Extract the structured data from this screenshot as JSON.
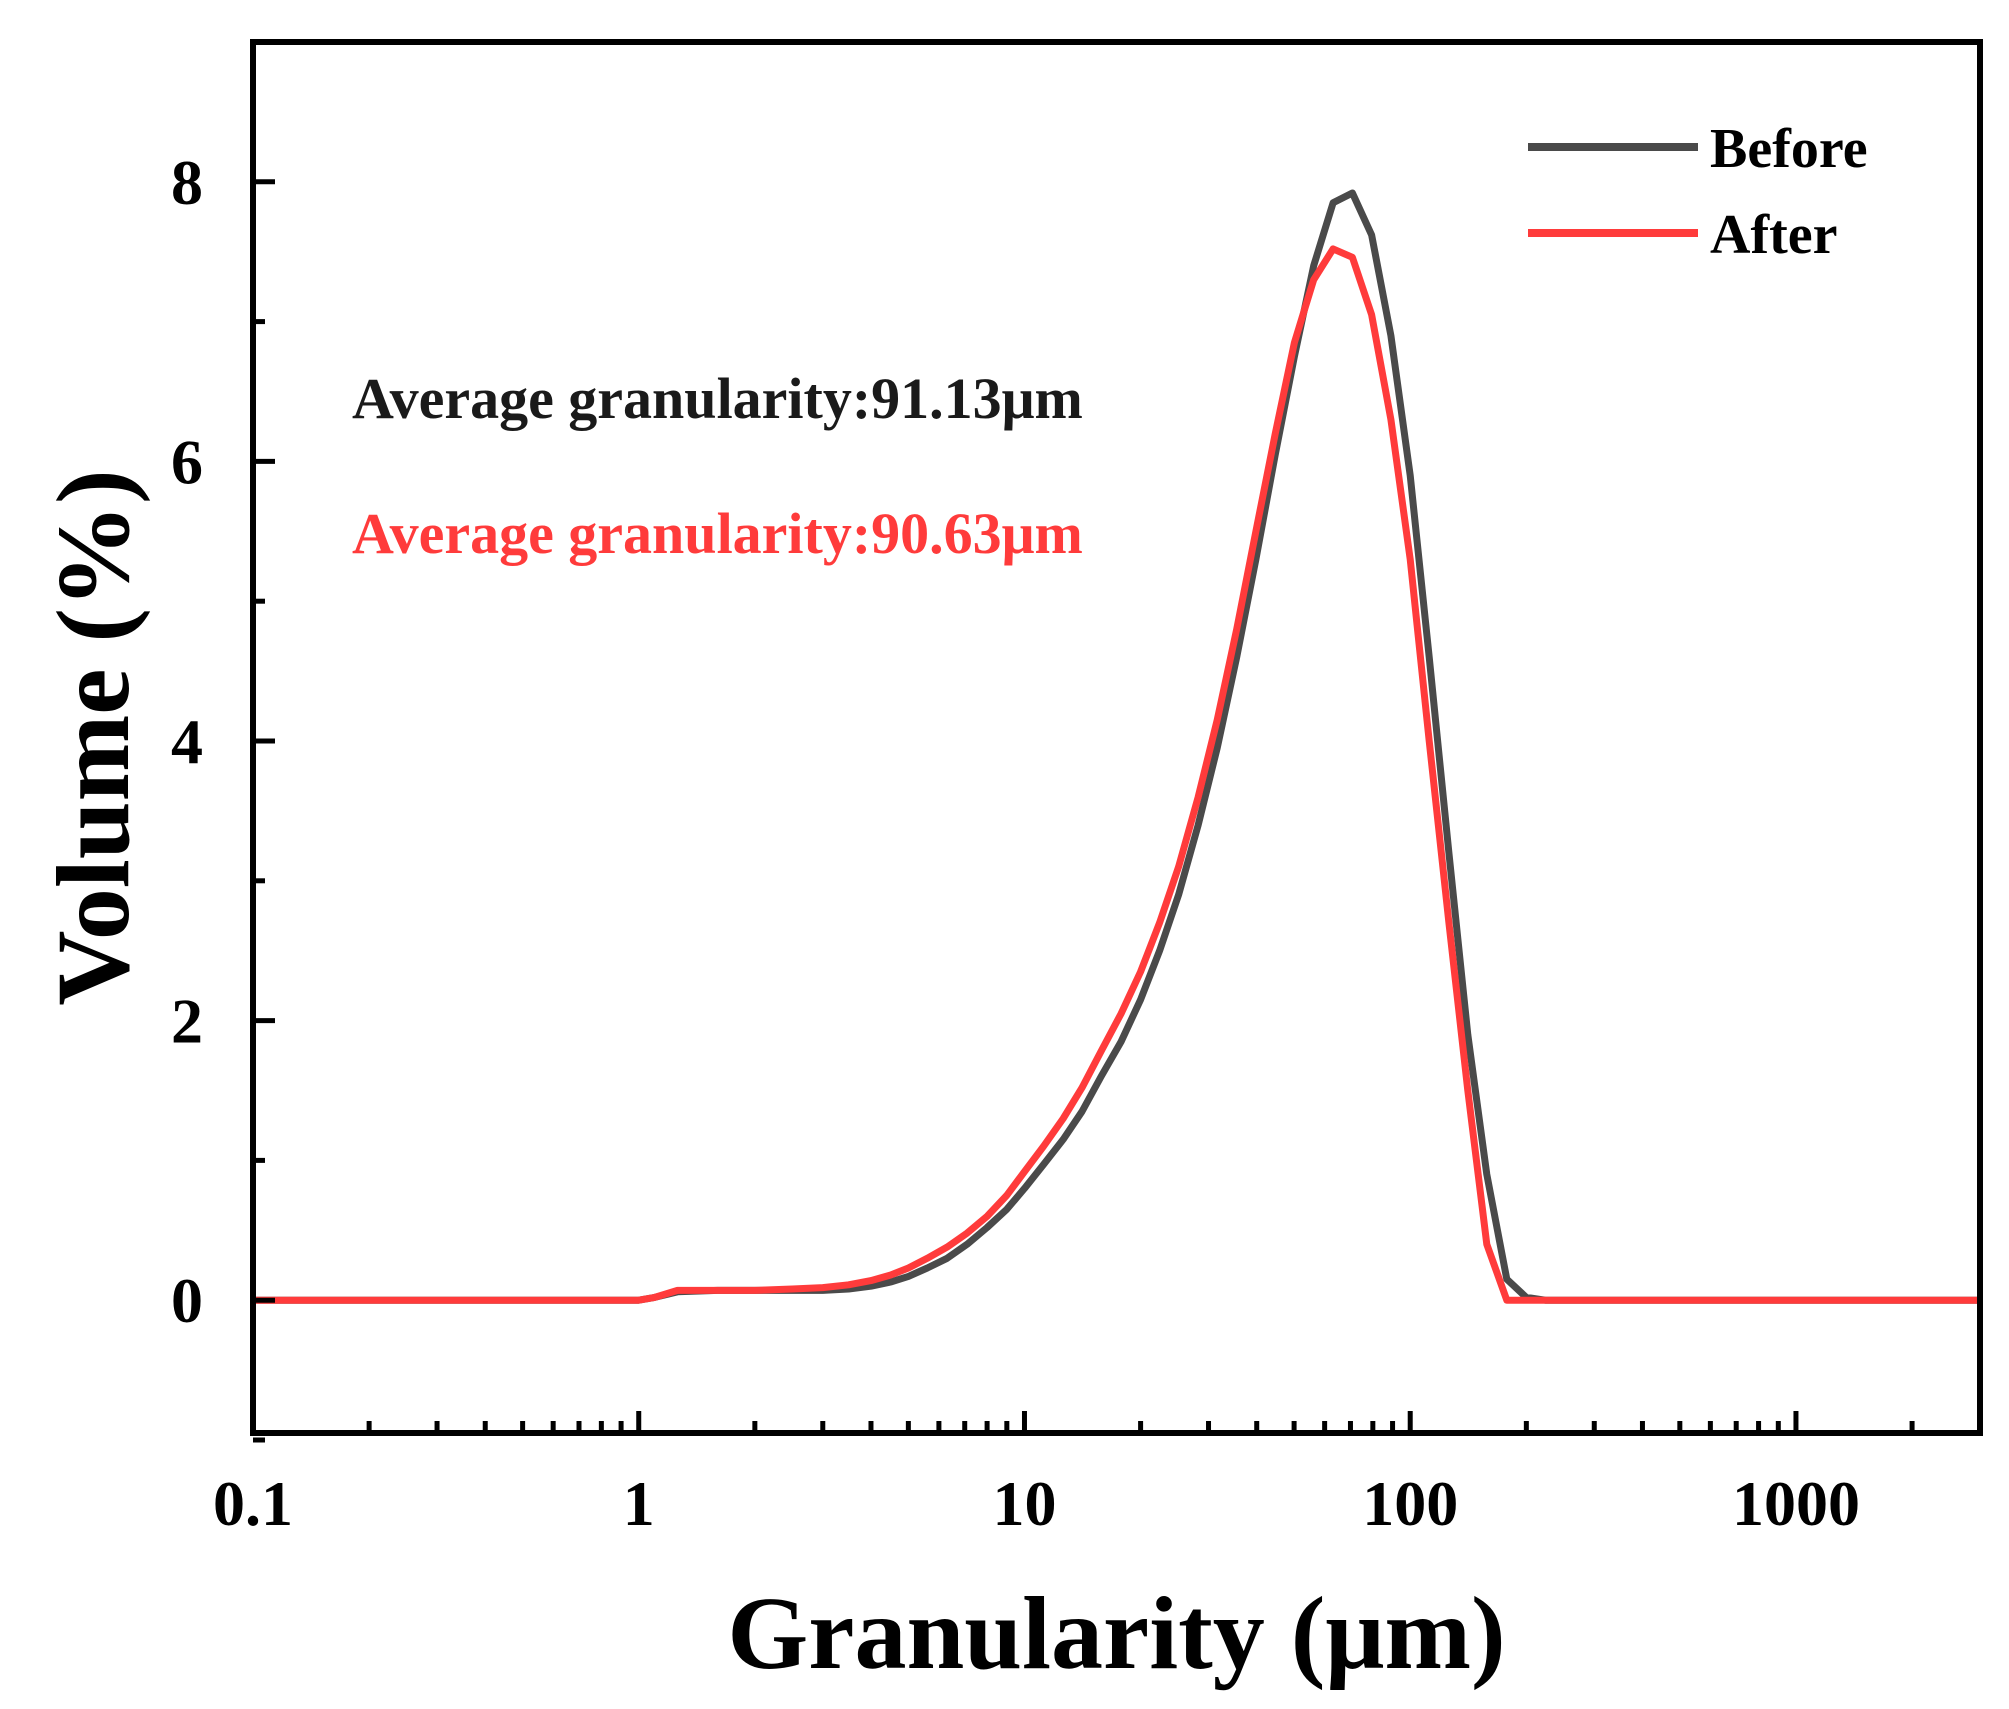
{
  "chart_data": {
    "type": "line",
    "title": "",
    "xlabel": "Granularity (μm)",
    "ylabel": "Volume (%)",
    "xscale": "log",
    "xlim": [
      0.1,
      3000
    ],
    "ylim": [
      -0.95,
      9.0
    ],
    "xticks": [
      0.1,
      1,
      10,
      100,
      1000
    ],
    "xtick_labels": [
      "0.1",
      "1",
      "10",
      "100",
      "1000"
    ],
    "yticks": [
      0,
      2,
      4,
      6,
      8
    ],
    "ytick_labels": [
      "0",
      "2",
      "4",
      "6",
      "8"
    ],
    "legend_position": "top-right",
    "grid": false,
    "series": [
      {
        "name": "Before",
        "color": "#4a4a4a",
        "x": [
          0.1,
          0.5,
          1.0,
          1.1,
          1.26,
          1.6,
          2.0,
          2.5,
          3.0,
          3.5,
          4.0,
          4.5,
          5.0,
          5.6,
          6.3,
          7.1,
          8.0,
          9.0,
          10,
          11.2,
          12.6,
          14.1,
          15.8,
          17.8,
          20,
          22.4,
          25.1,
          28.2,
          31.6,
          35.5,
          39.8,
          44.7,
          50.1,
          56.2,
          63.1,
          70.8,
          79.4,
          89.1,
          100,
          112,
          126,
          141,
          158,
          178,
          200,
          224,
          251,
          282,
          316,
          355,
          400,
          1000,
          3000
        ],
        "y": [
          0,
          0,
          0,
          0.02,
          0.06,
          0.07,
          0.07,
          0.07,
          0.07,
          0.08,
          0.1,
          0.13,
          0.17,
          0.23,
          0.3,
          0.4,
          0.52,
          0.65,
          0.8,
          0.97,
          1.15,
          1.35,
          1.6,
          1.85,
          2.15,
          2.5,
          2.9,
          3.4,
          3.95,
          4.6,
          5.3,
          6.05,
          6.75,
          7.4,
          7.85,
          7.92,
          7.62,
          6.9,
          5.9,
          4.6,
          3.2,
          1.9,
          0.9,
          0.15,
          0.02,
          0,
          0,
          0,
          0,
          0,
          0,
          0,
          0
        ],
        "x_fix": true
      },
      {
        "name": "After",
        "color": "#ff3b3b",
        "x": [
          0.1,
          0.5,
          1.0,
          1.1,
          1.26,
          1.6,
          2.0,
          2.5,
          3.0,
          3.5,
          4.0,
          4.5,
          5.0,
          5.6,
          6.3,
          7.1,
          8.0,
          9.0,
          10,
          11.2,
          12.6,
          14.1,
          15.8,
          17.8,
          20,
          22.4,
          25.1,
          28.2,
          31.6,
          35.5,
          39.8,
          44.7,
          50.1,
          56.2,
          63.1,
          70.8,
          79.4,
          89.1,
          100,
          112,
          126,
          141,
          158,
          178,
          200,
          224,
          251,
          282,
          316,
          355,
          400,
          1000,
          3000
        ],
        "y": [
          0,
          0,
          0,
          0.02,
          0.07,
          0.07,
          0.07,
          0.08,
          0.09,
          0.11,
          0.14,
          0.18,
          0.23,
          0.3,
          0.38,
          0.48,
          0.6,
          0.75,
          0.92,
          1.1,
          1.3,
          1.52,
          1.78,
          2.05,
          2.35,
          2.7,
          3.1,
          3.6,
          4.15,
          4.8,
          5.5,
          6.2,
          6.85,
          7.3,
          7.52,
          7.46,
          7.05,
          6.3,
          5.3,
          4.0,
          2.7,
          1.5,
          0.4,
          0,
          0,
          0,
          0,
          0,
          0,
          0,
          0,
          0,
          0
        ],
        "x_fix": true
      }
    ],
    "annotations": [
      {
        "text": "Average granularity:91.13μm",
        "color": "#1a1a1a"
      },
      {
        "text": "Average granularity:90.63μm",
        "color": "#ff3b3b"
      }
    ]
  }
}
